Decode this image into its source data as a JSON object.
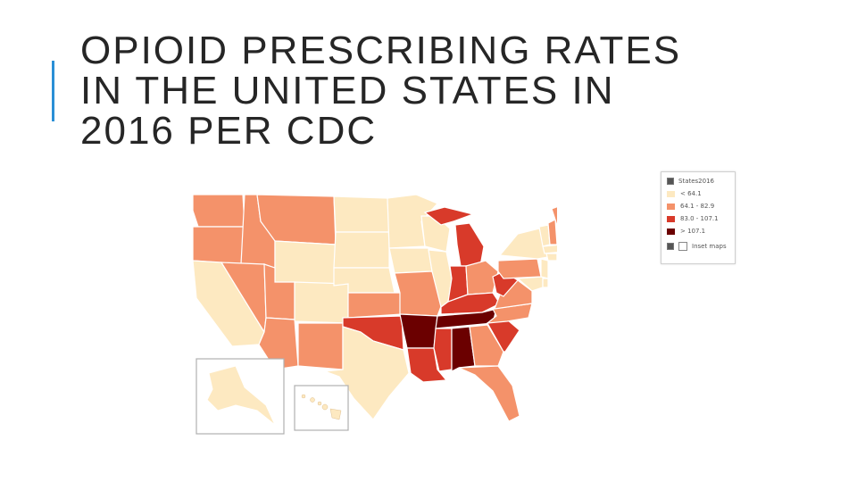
{
  "slide": {
    "title_lines": [
      "OPIOID PRESCRIBING RATES",
      "IN THE UNITED STATES IN",
      "2016 PER CDC"
    ],
    "accent_color": "#2a8fd6"
  },
  "legend": {
    "layer_name": "States2016",
    "items": [
      {
        "label": "< 64.1",
        "color": "#fde9c1"
      },
      {
        "label": "64.1 - 82.9",
        "color": "#f4926a"
      },
      {
        "label": "83.0 - 107.1",
        "color": "#d83a2a"
      },
      {
        "label": "> 107.1",
        "color": "#6b0000"
      }
    ],
    "inset_label": "Inset maps"
  }
}
